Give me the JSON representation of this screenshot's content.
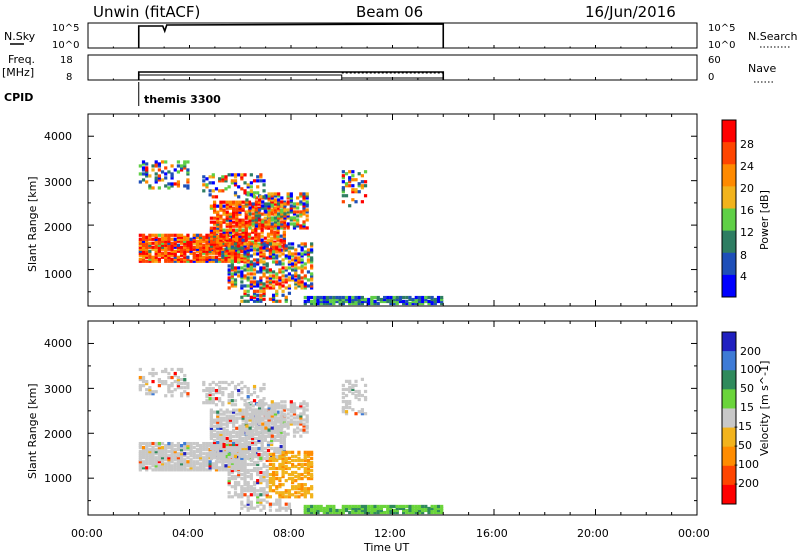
{
  "header": {
    "station": "Unwin (fitACF)",
    "beam": "Beam 06",
    "date": "16/Jun/2016"
  },
  "nsky_panel": {
    "label": "N.Sky",
    "left_ticks": [
      "10^5",
      "10^0"
    ],
    "right_ticks": [
      "10^5",
      "10^0"
    ],
    "right_label": "N.Search"
  },
  "freq_panel": {
    "label_line1": "Freq.",
    "label_line2": "[MHz]",
    "left_ticks": [
      "18",
      "8"
    ],
    "right_ticks": [
      "60",
      "0"
    ],
    "right_label": "Nave",
    "freq_mhz": 11,
    "nave_first": 10,
    "nave_second": 13
  },
  "cpid": {
    "label": "CPID",
    "program": "themis 3300"
  },
  "x_axis": {
    "label": "Time UT",
    "ticks": [
      "00:00",
      "04:00",
      "08:00",
      "12:00",
      "16:00",
      "20:00",
      "00:00"
    ],
    "data_start_hour": 2.0,
    "data_end_hour": 14.0,
    "nave_change_hour": 10.0
  },
  "chart_data": [
    {
      "type": "heatmap",
      "name": "power",
      "ylabel": "Slant Range [km]",
      "y_ticks": [
        "1000",
        "2000",
        "3000",
        "4000"
      ],
      "ylim": [
        180,
        4500
      ],
      "xlim_hours": [
        0,
        24
      ],
      "colorbar_label": "Power [dB]",
      "colorbar_ticks": [
        "4",
        "8",
        "12",
        "16",
        "20",
        "24",
        "28"
      ],
      "colorbar_range": [
        0,
        32
      ],
      "colors": [
        "#0000ff",
        "#1e4fb8",
        "#2e7d62",
        "#5fcf46",
        "#f2b31c",
        "#ff8a00",
        "#ff4500",
        "#ff0000"
      ]
    },
    {
      "type": "heatmap",
      "name": "velocity",
      "ylabel": "Slant Range [km]",
      "y_ticks": [
        "1000",
        "2000",
        "3000",
        "4000"
      ],
      "ylim": [
        180,
        4500
      ],
      "xlim_hours": [
        0,
        24
      ],
      "colorbar_label": "Velocity [m s^-1]",
      "colorbar_ticks": [
        "200",
        "100",
        "50",
        "15",
        "-15",
        "-50",
        "-100",
        "-200"
      ],
      "colors": [
        "#2020c0",
        "#3e7bd6",
        "#2f8a5c",
        "#6ad43a",
        "#c8c8c8",
        "#f2b31c",
        "#ff8c00",
        "#ff4500",
        "#ff0000"
      ],
      "ground_scatter_color": "#c8c8c8"
    }
  ]
}
